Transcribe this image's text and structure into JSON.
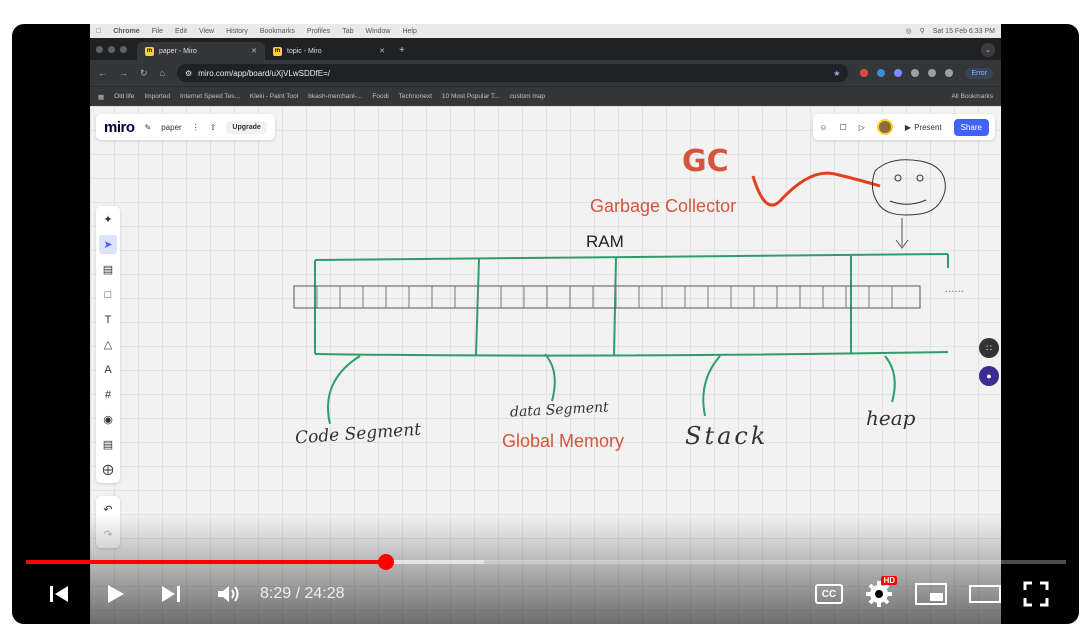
{
  "menubar": {
    "app": "Chrome",
    "items": [
      "File",
      "Edit",
      "View",
      "History",
      "Bookmarks",
      "Profiles",
      "Tab",
      "Window",
      "Help"
    ],
    "datetime": "Sat 15 Feb 6:33 PM"
  },
  "tabs": [
    {
      "label": "paper - Miro",
      "active": true
    },
    {
      "label": "topic - Miro",
      "active": false
    }
  ],
  "address": {
    "url": "miro.com/app/board/uXjVLwSDDfE=/",
    "error_label": "Error"
  },
  "bookmarks": {
    "items": [
      "Old life",
      "Imported",
      "Internet Speed Tes...",
      "Kleki - Paint Tool",
      "bkash-merchant-...",
      "Foodi",
      "Technonext",
      "10 Most Popular T...",
      "custom map"
    ],
    "all": "All Bookmarks"
  },
  "miro": {
    "logo": "miro",
    "board_name": "paper",
    "upgrade": "Upgrade",
    "present": "Present",
    "share": "Share"
  },
  "drawing": {
    "gc": "GC",
    "garbage_collector": "Garbage Collector",
    "ram": "RAM",
    "code_segment": "Code Segment",
    "data_segment": "data Segment",
    "global_memory": "Global Memory",
    "stack": "Stack",
    "heap": "heap",
    "ellipsis": "......"
  },
  "player": {
    "time": "8:29 / 24:28",
    "progress_fraction": 0.346,
    "loaded_fraction": 0.44,
    "cc_label": "CC",
    "hd_badge": "HD",
    "accent": "#ff0000"
  }
}
